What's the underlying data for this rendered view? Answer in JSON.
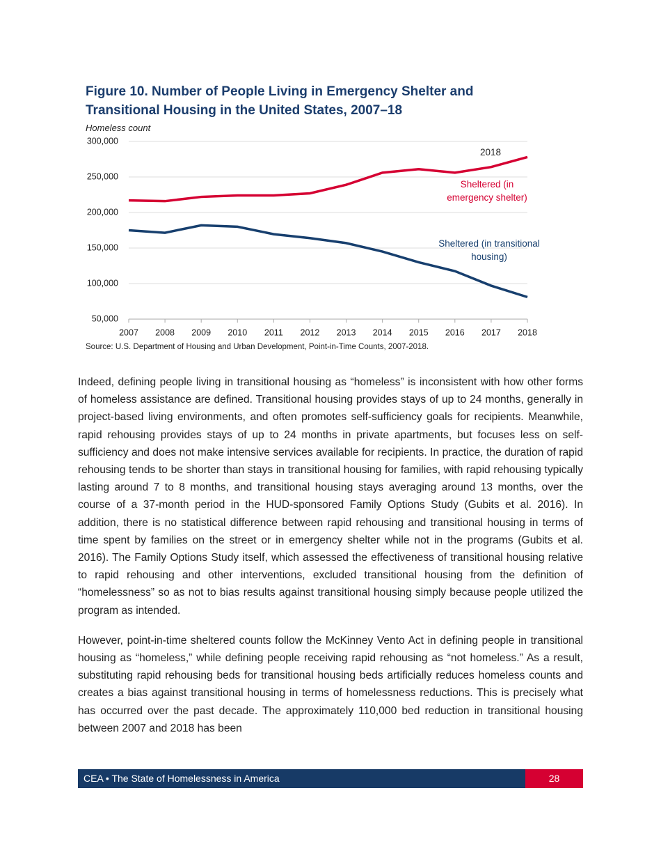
{
  "chart_data": {
    "type": "line",
    "title": "Figure 10. Number of People Living in Emergency Shelter and Transitional Housing in the United States, 2007–18",
    "y_label": "Homeless count",
    "x": [
      2007,
      2008,
      2009,
      2010,
      2011,
      2012,
      2013,
      2014,
      2015,
      2016,
      2017,
      2018
    ],
    "xlim": [
      2007,
      2018
    ],
    "xticks": [
      2007,
      2008,
      2009,
      2010,
      2011,
      2012,
      2013,
      2014,
      2015,
      2016,
      2017,
      2018
    ],
    "ylim": [
      50000,
      300000
    ],
    "yticks": [
      {
        "value": 50000,
        "label": "50,000"
      },
      {
        "value": 100000,
        "label": "100,000"
      },
      {
        "value": 150000,
        "label": "150,000"
      },
      {
        "value": 200000,
        "label": "200,000"
      },
      {
        "value": 250000,
        "label": "250,000"
      },
      {
        "value": 300000,
        "label": "300,000"
      }
    ],
    "grid": true,
    "annotation": "2018",
    "series": [
      {
        "name": "Sheltered (in emergency shelter)",
        "color": "#d50032",
        "values": [
          217000,
          216000,
          222000,
          224000,
          224000,
          227000,
          239000,
          256000,
          261000,
          256000,
          264000,
          278000
        ]
      },
      {
        "name": "Sheltered (in transitional housing)",
        "color": "#173f6e",
        "values": [
          175000,
          171500,
          182000,
          180000,
          169500,
          164000,
          157000,
          145000,
          130000,
          117500,
          97000,
          81000
        ]
      }
    ]
  },
  "source": "Source: U.S. Department of Housing and Urban Development, Point-in-Time Counts, 2007-2018.",
  "body": {
    "paragraphs": [
      "Indeed, defining people living in transitional housing as “homeless” is inconsistent with how other forms of homeless assistance are defined. Transitional housing provides stays of up to 24 months, generally in project-based living environments, and often promotes self-sufficiency goals for recipients. Meanwhile, rapid rehousing provides stays of up to 24 months in private apartments, but focuses less on self-sufficiency and does not make intensive services available for recipients. In practice, the duration of rapid rehousing tends to be shorter than stays in transitional housing for families, with rapid rehousing typically lasting around 7 to 8 months, and transitional housing stays averaging around 13 months, over the course of a 37-month period in the HUD-sponsored Family Options Study (Gubits et al. 2016). In addition, there is no statistical difference between rapid rehousing and transitional housing in terms of time spent by families on the street or in emergency shelter while not in the programs (Gubits et al. 2016). The Family Options Study itself, which assessed the effectiveness of transitional housing relative to rapid rehousing and other interventions, excluded transitional housing from the definition of “homelessness” so as not to bias results against transitional housing simply because people utilized the program as intended.",
      "However, point-in-time sheltered counts follow the McKinney Vento Act in defining people in transitional housing as “homeless,” while defining people receiving rapid rehousing as “not homeless.” As a result, substituting rapid rehousing beds for transitional housing beds artificially reduces homeless counts and creates a bias against transitional housing in terms of homelessness reductions. This is precisely what has occurred over the past decade. The approximately 110,000 bed reduction in transitional housing between 2007 and 2018 has been"
    ]
  },
  "footer": {
    "left": "CEA • The State of Homelessness in America",
    "page": "28"
  }
}
